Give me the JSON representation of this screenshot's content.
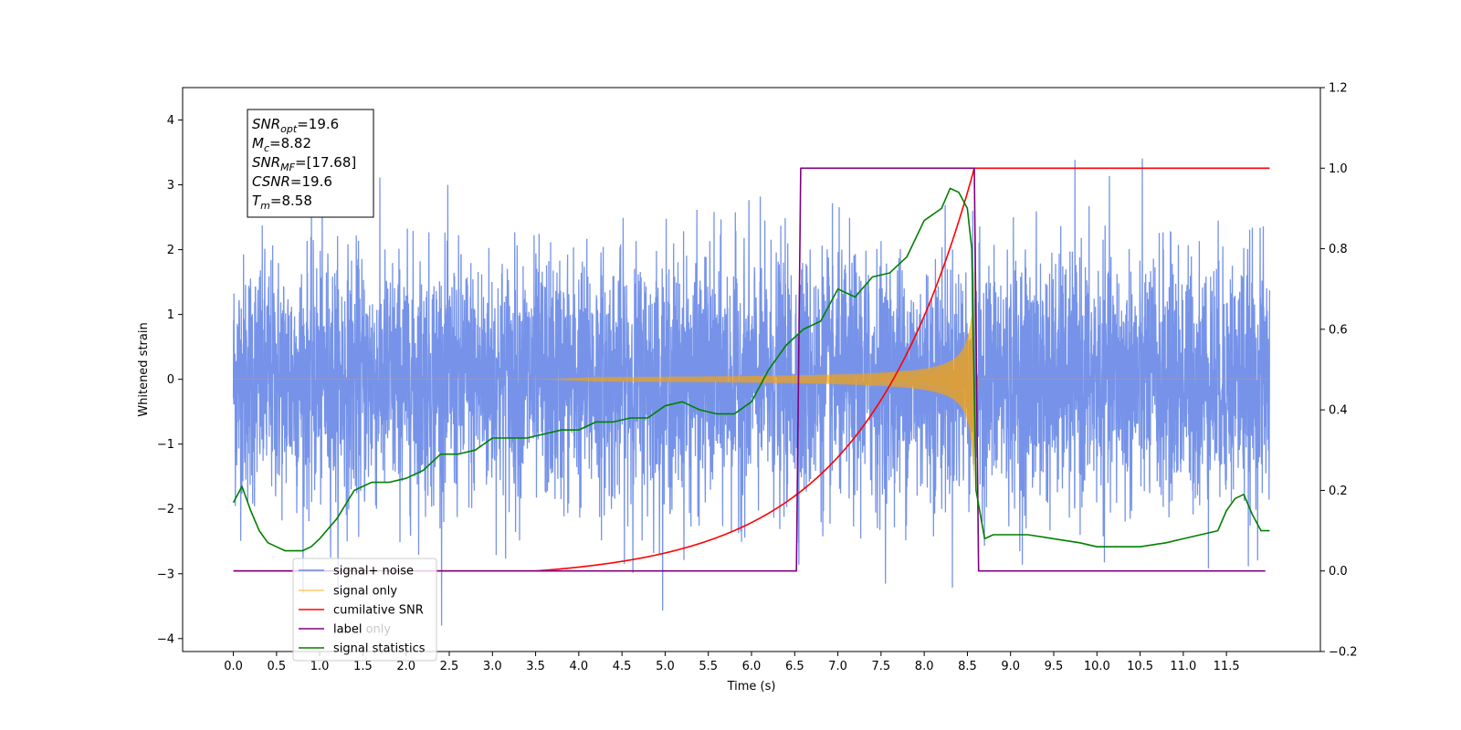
{
  "chart_data": {
    "type": "line",
    "title": "",
    "xlabel": "Time (s)",
    "ylabel": "Whitened strain",
    "ylabel_right": "",
    "xlim": [
      -0.5875,
      12.5875
    ],
    "ylim_left": [
      -4.2,
      4.5
    ],
    "ylim_right": [
      -0.2,
      1.2
    ],
    "x_ticks": [
      "0.0",
      "0.5",
      "1.0",
      "1.5",
      "2.0",
      "2.5",
      "3.0",
      "3.5",
      "4.0",
      "4.5",
      "5.0",
      "5.5",
      "6.0",
      "6.5",
      "7.0",
      "7.5",
      "8.0",
      "8.5",
      "9.0",
      "9.5",
      "10.0",
      "10.5",
      "11.0",
      "11.5"
    ],
    "y_ticks_left": [
      "−4",
      "−3",
      "−2",
      "−1",
      "0",
      "1",
      "2",
      "3",
      "4"
    ],
    "y_ticks_right": [
      "−0.2",
      "0.0",
      "0.2",
      "0.4",
      "0.6",
      "0.8",
      "1.0",
      "1.2"
    ],
    "grid": false,
    "legend_position": "lower-left",
    "series": [
      {
        "name": "signal+ noise",
        "color": "#4169e1",
        "axis": "left",
        "description_values": {
          "noise_std": 0.95,
          "x_range": [
            0,
            12.0
          ]
        }
      },
      {
        "name": "signal only",
        "color": "#ffa500",
        "axis": "left",
        "chirp": {
          "start": 0.0,
          "merger": 8.58,
          "end": 12.0,
          "peak_amplitude": 1.8
        }
      },
      {
        "name": "cumilative SNR",
        "color": "#ff0000",
        "axis": "right",
        "x": [
          0.0,
          3.5,
          4.0,
          4.5,
          5.0,
          5.5,
          6.0,
          6.5,
          7.0,
          7.5,
          8.0,
          8.3,
          8.58,
          8.6,
          12.0
        ],
        "y": [
          0.0,
          0.0,
          0.003,
          0.02,
          0.06,
          0.11,
          0.16,
          0.22,
          0.29,
          0.39,
          0.55,
          0.72,
          1.0,
          1.0,
          1.0
        ]
      },
      {
        "name": "label",
        "color": "#800080",
        "axis": "right",
        "x": [
          0.0,
          6.52,
          6.57,
          8.58,
          8.63,
          11.95
        ],
        "y": [
          0.0,
          0.0,
          1.0,
          1.0,
          0.0,
          0.0
        ]
      },
      {
        "name": "label only",
        "color": "#ffffff",
        "axis": "right",
        "hidden": true
      },
      {
        "name": "signal statistics",
        "color": "#008000",
        "axis": "right",
        "x": [
          0.0,
          0.1,
          0.2,
          0.3,
          0.4,
          0.5,
          0.6,
          0.7,
          0.8,
          0.9,
          1.0,
          1.2,
          1.4,
          1.6,
          1.8,
          2.0,
          2.2,
          2.4,
          2.6,
          2.8,
          3.0,
          3.2,
          3.4,
          3.6,
          3.8,
          4.0,
          4.2,
          4.4,
          4.6,
          4.8,
          5.0,
          5.2,
          5.4,
          5.6,
          5.8,
          6.0,
          6.2,
          6.4,
          6.6,
          6.8,
          7.0,
          7.2,
          7.4,
          7.6,
          7.8,
          8.0,
          8.2,
          8.3,
          8.4,
          8.5,
          8.55,
          8.6,
          8.7,
          8.8,
          9.0,
          9.2,
          9.5,
          9.8,
          10.0,
          10.2,
          10.5,
          10.8,
          11.0,
          11.2,
          11.4,
          11.5,
          11.6,
          11.7,
          11.8,
          11.9,
          12.0
        ],
        "y": [
          0.17,
          0.21,
          0.15,
          0.1,
          0.07,
          0.06,
          0.05,
          0.05,
          0.05,
          0.06,
          0.08,
          0.13,
          0.2,
          0.22,
          0.22,
          0.23,
          0.25,
          0.29,
          0.29,
          0.3,
          0.33,
          0.33,
          0.33,
          0.34,
          0.35,
          0.35,
          0.37,
          0.37,
          0.38,
          0.38,
          0.41,
          0.42,
          0.4,
          0.39,
          0.39,
          0.42,
          0.5,
          0.56,
          0.6,
          0.62,
          0.7,
          0.68,
          0.73,
          0.74,
          0.78,
          0.87,
          0.9,
          0.95,
          0.94,
          0.9,
          0.8,
          0.2,
          0.08,
          0.09,
          0.09,
          0.09,
          0.08,
          0.07,
          0.06,
          0.06,
          0.06,
          0.07,
          0.08,
          0.09,
          0.1,
          0.15,
          0.18,
          0.19,
          0.14,
          0.1,
          0.1
        ]
      }
    ],
    "annotations": [
      {
        "label": "SNR",
        "sub": "opt",
        "value": "=19.6"
      },
      {
        "label": "M",
        "sub": "c",
        "value": "=8.82"
      },
      {
        "label": "SNR",
        "sub": "MF",
        "value": "=[17.68]"
      },
      {
        "label": "CSNR",
        "sub": "",
        "value": "=19.6"
      },
      {
        "label": "T",
        "sub": "m",
        "value": "=8.58"
      }
    ]
  }
}
